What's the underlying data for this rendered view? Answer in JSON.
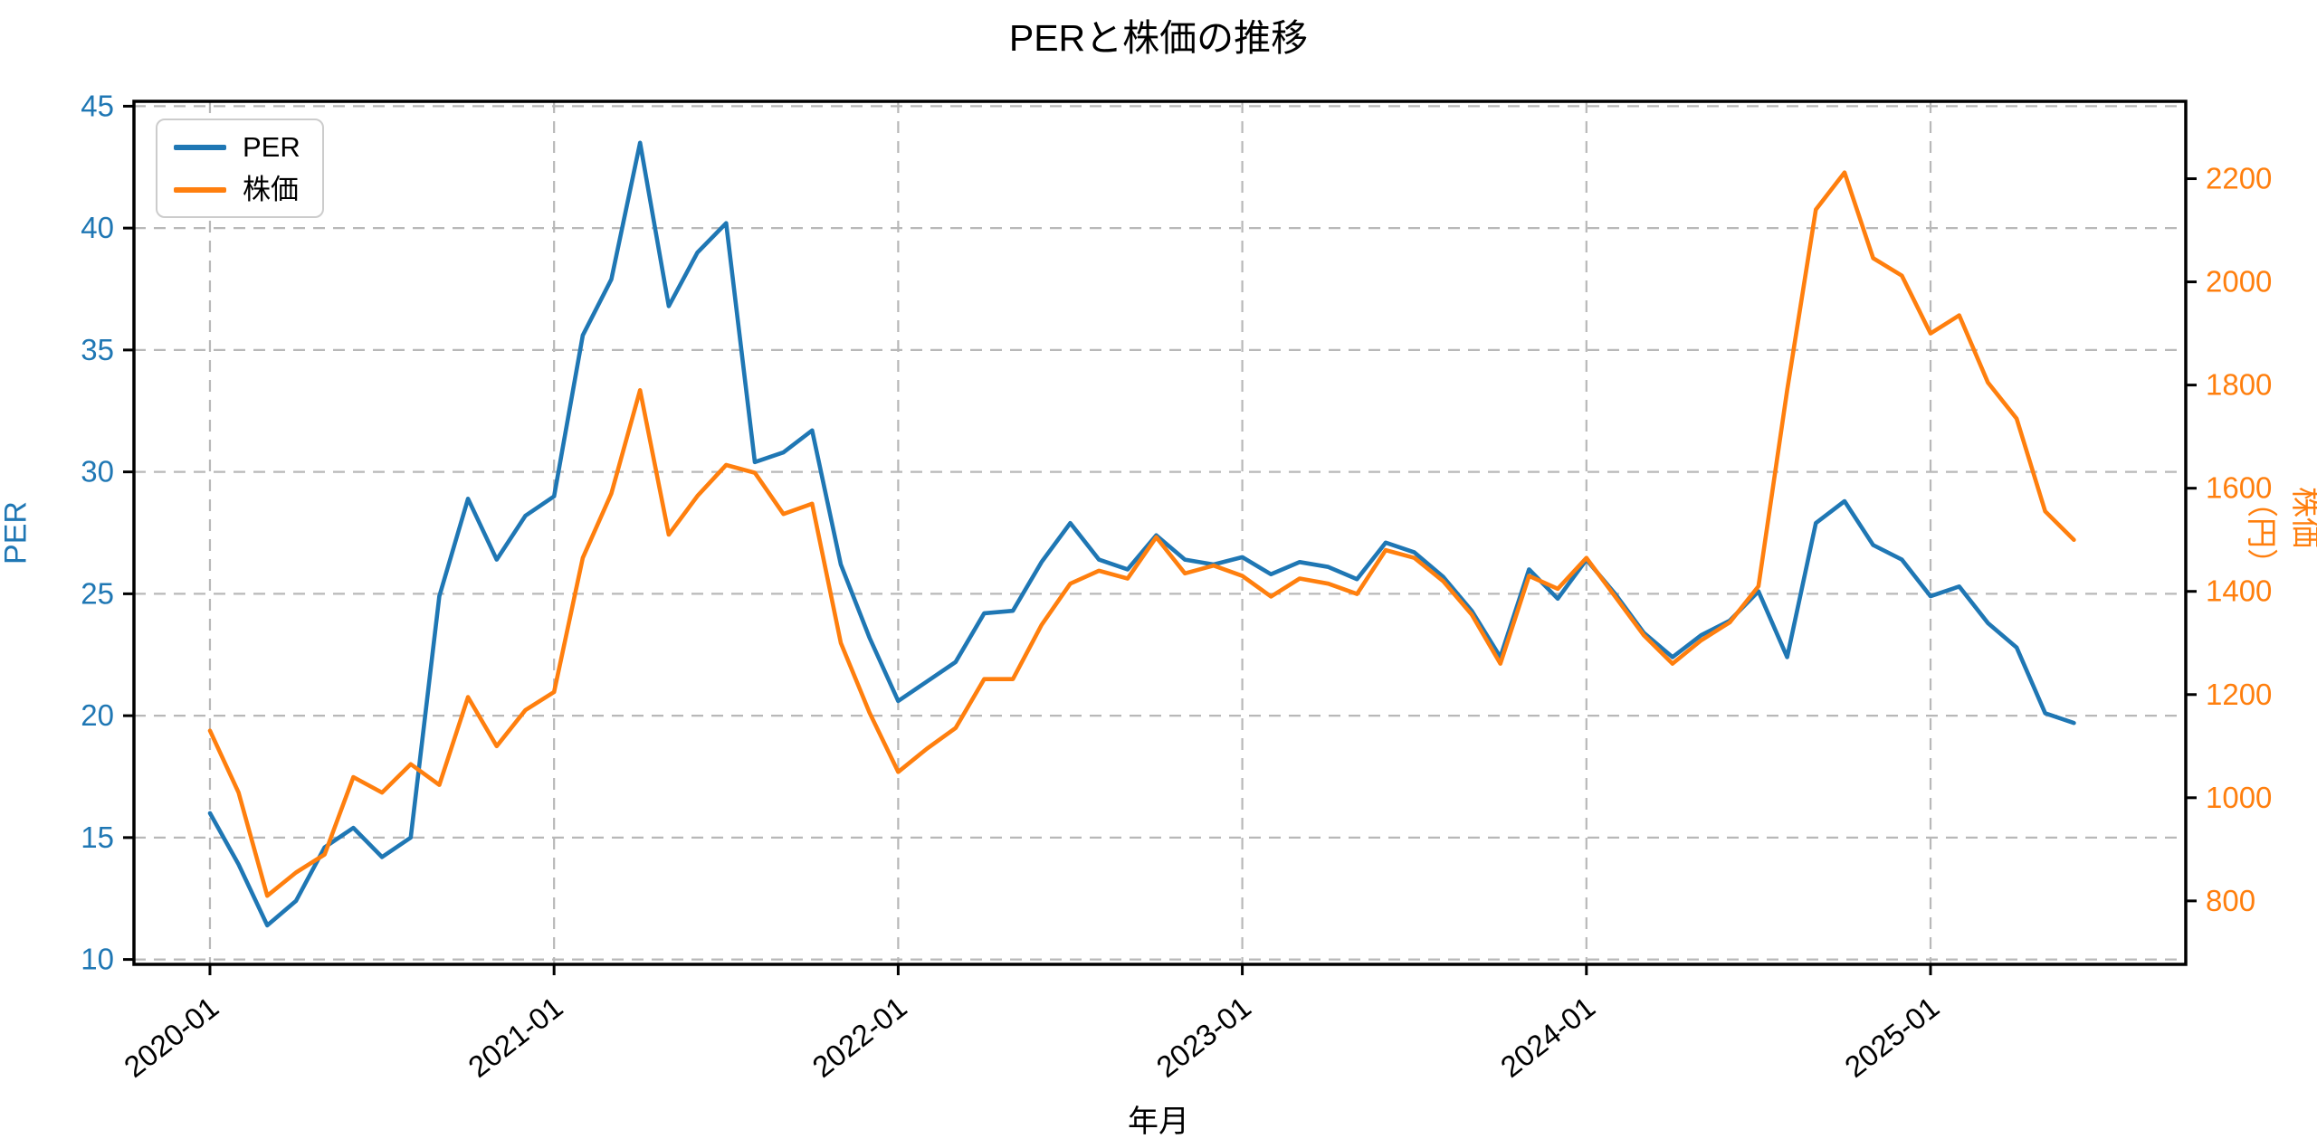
{
  "title": "PERと株価の推移",
  "chart_data": {
    "type": "line",
    "title": "PERと株価の推移",
    "xlabel": "年月",
    "ylabel_left": "PER",
    "ylabel_right": "株価（円）",
    "legend_position": "upper-left",
    "grid": "dashed",
    "categories": [
      "2020-01",
      "2020-02",
      "2020-03",
      "2020-04",
      "2020-05",
      "2020-06",
      "2020-07",
      "2020-08",
      "2020-09",
      "2020-10",
      "2020-11",
      "2020-12",
      "2021-01",
      "2021-02",
      "2021-03",
      "2021-04",
      "2021-05",
      "2021-06",
      "2021-07",
      "2021-08",
      "2021-09",
      "2021-10",
      "2021-11",
      "2021-12",
      "2022-01",
      "2022-02",
      "2022-03",
      "2022-04",
      "2022-05",
      "2022-06",
      "2022-07",
      "2022-08",
      "2022-09",
      "2022-10",
      "2022-11",
      "2022-12",
      "2023-01",
      "2023-02",
      "2023-03",
      "2023-04",
      "2023-05",
      "2023-06",
      "2023-07",
      "2023-08",
      "2023-09",
      "2023-10",
      "2023-11",
      "2023-12",
      "2024-01",
      "2024-02",
      "2024-03",
      "2024-04",
      "2024-05",
      "2024-06",
      "2024-07",
      "2024-08",
      "2024-09",
      "2024-10",
      "2024-11",
      "2024-12",
      "2025-01",
      "2025-02",
      "2025-03",
      "2025-04",
      "2025-05",
      "2025-06"
    ],
    "series": [
      {
        "name": "PER",
        "axis": "left",
        "color": "#1f77b4",
        "values": [
          16.0,
          13.9,
          11.4,
          12.4,
          14.6,
          15.4,
          14.2,
          15.0,
          24.9,
          28.9,
          26.4,
          28.2,
          29.0,
          35.6,
          37.9,
          43.5,
          36.8,
          39.0,
          40.2,
          30.4,
          30.8,
          31.7,
          26.2,
          23.2,
          20.6,
          21.4,
          22.2,
          24.2,
          24.3,
          26.3,
          27.9,
          26.4,
          26.0,
          27.4,
          26.4,
          26.2,
          26.5,
          25.8,
          26.3,
          26.1,
          25.6,
          27.1,
          26.7,
          25.7,
          24.3,
          22.4,
          26.0,
          24.8,
          26.4,
          25.0,
          23.4,
          22.4,
          23.3,
          23.9,
          25.1,
          22.4,
          27.9,
          28.8,
          27.0,
          26.4,
          24.9,
          25.3,
          23.8,
          22.8,
          20.1,
          19.7
        ]
      },
      {
        "name": "株価",
        "axis": "right",
        "color": "#ff7f0e",
        "values": [
          1130,
          1010,
          810,
          855,
          890,
          1040,
          1010,
          1065,
          1025,
          1195,
          1100,
          1170,
          1205,
          1465,
          1590,
          1790,
          1510,
          1585,
          1645,
          1630,
          1550,
          1570,
          1300,
          1165,
          1050,
          1095,
          1135,
          1230,
          1230,
          1335,
          1415,
          1440,
          1425,
          1505,
          1435,
          1450,
          1430,
          1390,
          1425,
          1415,
          1395,
          1480,
          1465,
          1420,
          1355,
          1260,
          1430,
          1405,
          1465,
          1390,
          1315,
          1260,
          1305,
          1340,
          1410,
          1790,
          2140,
          2212,
          2046,
          2012,
          1900,
          1935,
          1805,
          1735,
          1555,
          1500
        ]
      }
    ],
    "left_axis": {
      "ticks": [
        10,
        15,
        20,
        25,
        30,
        35,
        40,
        45
      ],
      "range": [
        9.8,
        45.2
      ],
      "color": "#1f77b4"
    },
    "right_axis": {
      "ticks": [
        800,
        1000,
        1200,
        1400,
        1600,
        1800,
        2000,
        2200
      ],
      "range": [
        677,
        2350
      ],
      "color": "#ff7f0e"
    },
    "x_axis": {
      "tick_labels": [
        "2020-01",
        "2021-01",
        "2022-01",
        "2023-01",
        "2024-01",
        "2025-01"
      ],
      "tick_month_indices": [
        0,
        12,
        24,
        36,
        48,
        60
      ],
      "range_month_index": [
        -2.65,
        68.9
      ]
    },
    "grid_color": "#b8b8b8",
    "spine_color": "#000000",
    "background_color": "#ffffff"
  }
}
